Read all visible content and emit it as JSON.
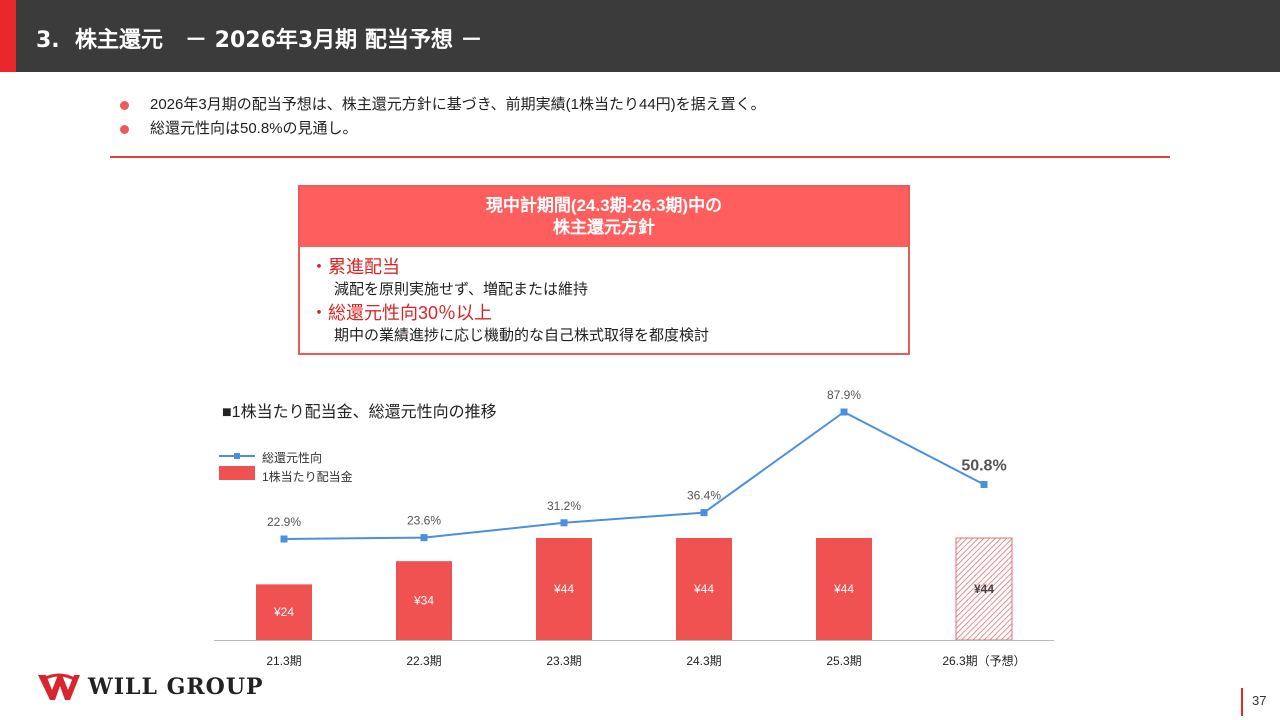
{
  "header": {
    "title": "3.  株主還元　－ 2026年3月期 配当予想 －"
  },
  "bullets": [
    "2026年3月期の配当予想は、株主還元方針に基づき、前期実績(1株当たり44円)を据え置く。",
    "総還元性向は50.8%の見通し。"
  ],
  "policy": {
    "title_line1": "現中計期間(24.3期-26.3期)中の",
    "title_line2": "株主還元方針",
    "items": [
      {
        "label": "・累進配当",
        "desc": "減配を原則実施せず、増配または維持"
      },
      {
        "label": "・総還元性向30％以上",
        "desc": "期中の業績進捗に応じ機動的な自己株式取得を都度検討"
      }
    ]
  },
  "chart_title": "■1株当たり配当金、総還元性向の推移",
  "legend": {
    "line_label": "総還元性向",
    "bar_label": "1株当たり配当金"
  },
  "colors": {
    "bar": "#f05252",
    "line": "#4a8fe0",
    "accent": "#e8282b"
  },
  "chart_data": {
    "type": "bar",
    "categories": [
      "21.3期",
      "22.3期",
      "23.3期",
      "24.3期",
      "25.3期",
      "26.3期（予想）"
    ],
    "series": [
      {
        "name": "1株当たり配当金",
        "type": "bar",
        "values": [
          24,
          34,
          44,
          44,
          44,
          44
        ],
        "labels": [
          "¥24",
          "¥34",
          "¥44",
          "¥44",
          "¥44",
          "¥44"
        ],
        "forecast_index": 5
      },
      {
        "name": "総還元性向",
        "type": "line",
        "values": [
          22.9,
          23.6,
          31.2,
          36.4,
          87.9,
          50.8
        ],
        "labels": [
          "22.9%",
          "23.6%",
          "31.2%",
          "36.4%",
          "87.9%",
          "50.8%"
        ]
      }
    ],
    "bar_ylim": [
      0,
      44
    ],
    "line_ylim": [
      0,
      87.9
    ],
    "title": "■1株当たり配当金、総還元性向の推移"
  },
  "footer": {
    "logo_text": "WILL GROUP",
    "page_number": "37"
  }
}
